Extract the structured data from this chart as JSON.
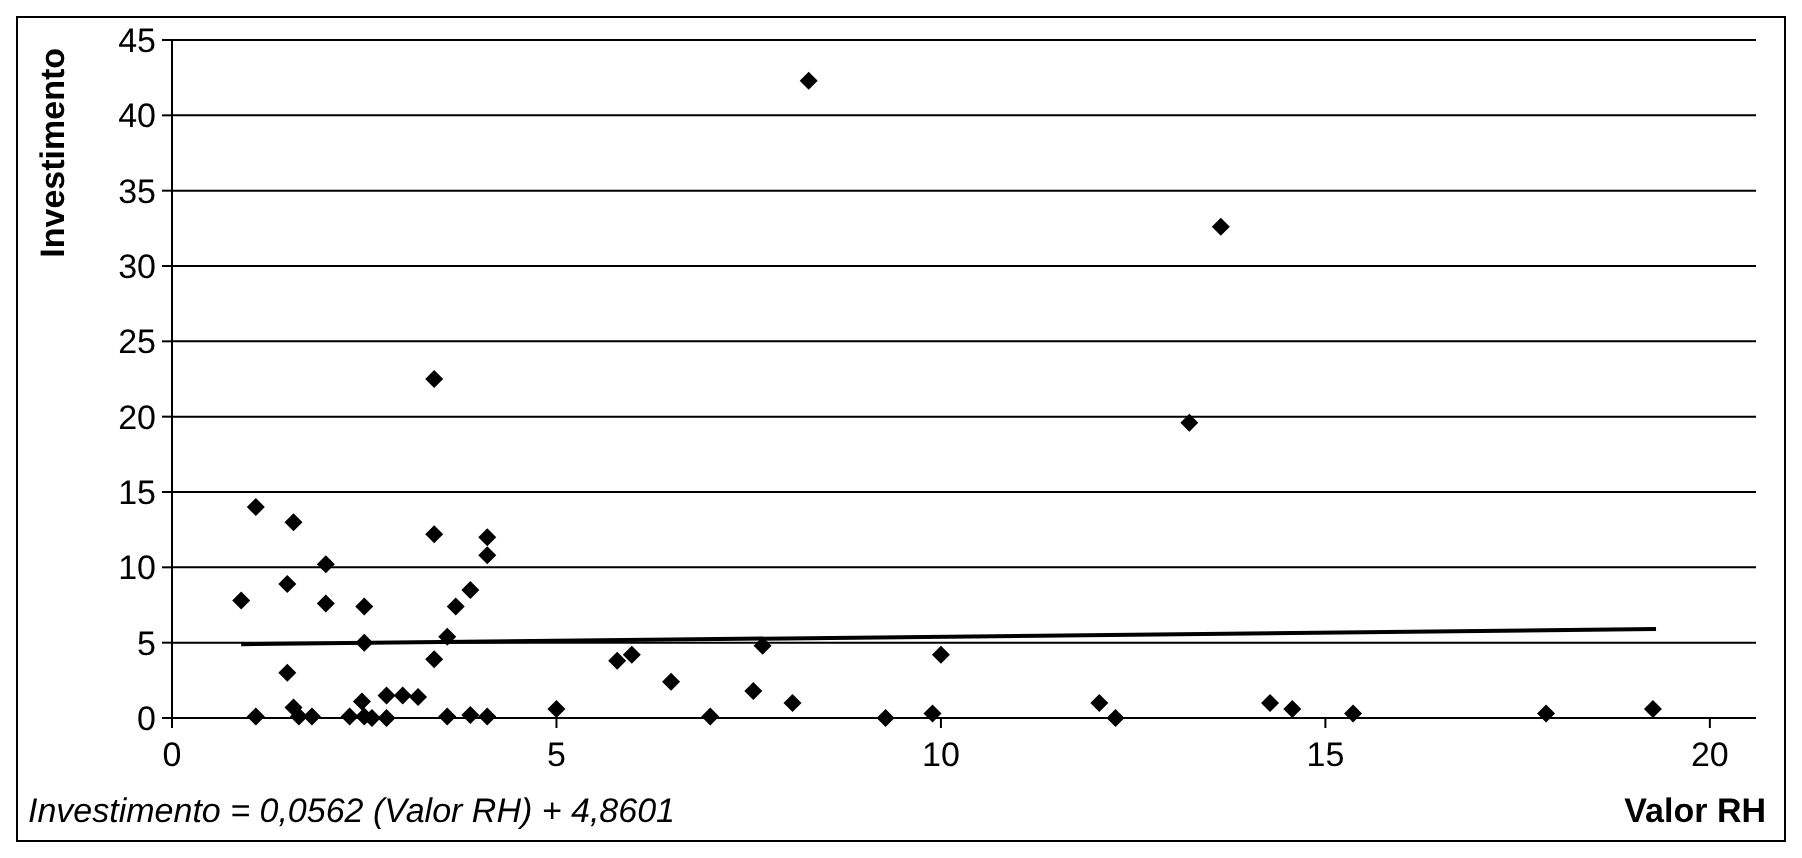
{
  "chart_data": {
    "type": "scatter",
    "xlabel": "Valor RH",
    "ylabel": "Investimento",
    "xlim": [
      0,
      20.6
    ],
    "ylim": [
      0,
      45
    ],
    "xticks": [
      0,
      5,
      10,
      15,
      20
    ],
    "yticks": [
      0,
      5,
      10,
      15,
      20,
      25,
      30,
      35,
      40,
      45
    ],
    "grid": "y",
    "annotations": [
      "Investimento = 0,0562 (Valor RH) + 4,8601"
    ],
    "series": [
      {
        "marker": "diamond",
        "color": "#000000",
        "x": [
          0.9,
          1.09,
          1.58,
          1.5,
          2.0,
          2.0,
          2.5,
          2.5,
          1.5,
          3.41,
          3.41,
          4.1,
          4.1,
          3.88,
          3.69,
          3.58,
          3.41,
          1.09,
          1.58,
          1.65,
          1.82,
          2.31,
          2.47,
          2.5,
          2.6,
          2.79,
          2.79,
          3.0,
          3.2,
          3.58,
          3.88,
          4.1,
          8.28,
          5.79,
          5.98,
          6.49,
          7.0,
          7.68,
          7.56,
          8.07,
          9.28,
          9.89,
          10.0,
          5.0,
          12.06,
          12.27,
          13.23,
          13.64,
          14.28,
          14.57,
          15.36,
          17.87,
          19.26
        ],
        "values": [
          7.8,
          14.0,
          13.0,
          8.9,
          10.2,
          7.6,
          7.4,
          5.0,
          3.0,
          22.5,
          12.2,
          12.0,
          10.8,
          8.5,
          7.4,
          5.4,
          3.9,
          0.1,
          0.7,
          0.1,
          0.1,
          0.1,
          1.1,
          0.1,
          0.0,
          0.0,
          1.5,
          1.5,
          1.4,
          0.1,
          0.2,
          0.1,
          42.3,
          3.8,
          4.2,
          2.4,
          0.1,
          4.8,
          1.8,
          1.0,
          0.0,
          0.3,
          4.2,
          0.6,
          1.0,
          0.0,
          19.6,
          32.6,
          1.0,
          0.6,
          0.3,
          0.3,
          0.6
        ]
      },
      {
        "type": "line",
        "marker": "none",
        "color": "#000000",
        "x": [
          0.9,
          19.3
        ],
        "values": [
          4.9,
          5.9
        ]
      }
    ]
  }
}
